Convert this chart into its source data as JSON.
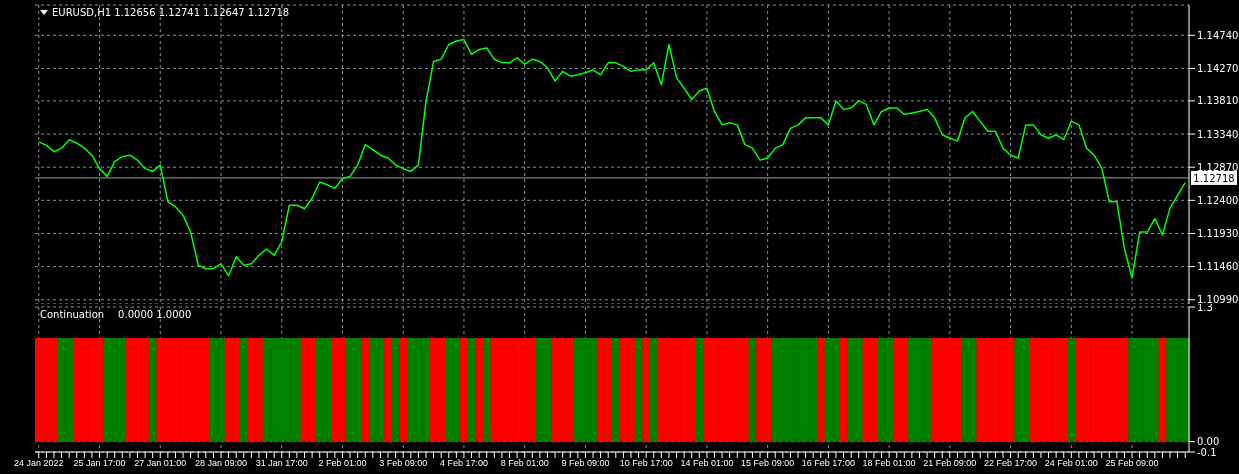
{
  "chart_data": [
    {
      "type": "line",
      "title": "EURUSD,H1 1.12656 1.12741 1.12647 1.12718",
      "series": [
        {
          "color": "#00ff00",
          "values": [
            1.1323,
            1.1318,
            1.1309,
            1.1314,
            1.1326,
            1.1321,
            1.1314,
            1.1304,
            1.1285,
            1.1274,
            1.1295,
            1.1302,
            1.1304,
            1.1297,
            1.1285,
            1.1281,
            1.129,
            1.1238,
            1.1231,
            1.1219,
            1.1195,
            1.1148,
            1.1143,
            1.1143,
            1.115,
            1.1133,
            1.116,
            1.1148,
            1.115,
            1.1162,
            1.1171,
            1.1162,
            1.1181,
            1.1233,
            1.1233,
            1.1228,
            1.1243,
            1.1266,
            1.1262,
            1.1257,
            1.1271,
            1.1274,
            1.129,
            1.1319,
            1.1312,
            1.1304,
            1.13,
            1.129,
            1.1285,
            1.1281,
            1.129,
            1.138,
            1.1437,
            1.144,
            1.1461,
            1.1466,
            1.1468,
            1.1447,
            1.1454,
            1.1456,
            1.144,
            1.1435,
            1.1435,
            1.1442,
            1.1433,
            1.144,
            1.1437,
            1.1428,
            1.1409,
            1.1423,
            1.1416,
            1.1418,
            1.1421,
            1.1425,
            1.1418,
            1.1435,
            1.1435,
            1.143,
            1.1423,
            1.1425,
            1.1425,
            1.1435,
            1.1404,
            1.1461,
            1.1414,
            1.1399,
            1.1383,
            1.1395,
            1.1399,
            1.1366,
            1.1347,
            1.135,
            1.1347,
            1.1319,
            1.1314,
            1.1297,
            1.13,
            1.1314,
            1.1319,
            1.1342,
            1.1347,
            1.1357,
            1.1357,
            1.1357,
            1.1347,
            1.1381,
            1.1369,
            1.1371,
            1.1381,
            1.1376,
            1.1347,
            1.1366,
            1.1371,
            1.1371,
            1.1362,
            1.1364,
            1.1366,
            1.1369,
            1.1357,
            1.1333,
            1.1328,
            1.1324,
            1.1357,
            1.1366,
            1.1352,
            1.1338,
            1.1338,
            1.1314,
            1.1304,
            1.13,
            1.1347,
            1.1347,
            1.1333,
            1.1328,
            1.1333,
            1.1326,
            1.1352,
            1.1347,
            1.1314,
            1.1304,
            1.1286,
            1.1238,
            1.1238,
            1.1171,
            1.113,
            1.1195,
            1.1195,
            1.1214,
            1.1191,
            1.1229,
            1.1247,
            1.1265
          ]
        }
      ],
      "ylim": [
        1.1093,
        1.1517
      ],
      "yticks": [
        {
          "value": 1.1099,
          "label": "1.10990"
        },
        {
          "value": 1.1146,
          "label": "1.11460"
        },
        {
          "value": 1.1193,
          "label": "1.11930"
        },
        {
          "value": 1.124,
          "label": "1.12400"
        },
        {
          "value": 1.1287,
          "label": "1.12870"
        },
        {
          "value": 1.1334,
          "label": "1.13340"
        },
        {
          "value": 1.1381,
          "label": "1.13810"
        },
        {
          "value": 1.1427,
          "label": "1.14270"
        },
        {
          "value": 1.1474,
          "label": "1.14740"
        }
      ],
      "ref_lines": [
        {
          "axis": "y",
          "value": 1.12718,
          "label": "1.12718",
          "color": "#a0a0a0"
        }
      ],
      "grid": true,
      "tick_labels": "y",
      "marker": "none",
      "line_style": "solid"
    },
    {
      "type": "bar",
      "title": "Continuation",
      "annotations": [
        "0.0000 1.0000"
      ],
      "categories": [
        "24 Jan 2022",
        null,
        null,
        null,
        null,
        null,
        null,
        null,
        "25 Jan 17:00",
        null,
        null,
        null,
        null,
        null,
        null,
        null,
        "27 Jan 01:00",
        null,
        null,
        null,
        null,
        null,
        null,
        null,
        "28 Jan 09:00",
        null,
        null,
        null,
        null,
        null,
        null,
        null,
        "31 Jan 17:00",
        null,
        null,
        null,
        null,
        null,
        null,
        null,
        "2 Feb 01:00",
        null,
        null,
        null,
        null,
        null,
        null,
        null,
        "3 Feb 09:00",
        null,
        null,
        null,
        null,
        null,
        null,
        null,
        "4 Feb 17:00",
        null,
        null,
        null,
        null,
        null,
        null,
        null,
        "8 Feb 01:00",
        null,
        null,
        null,
        null,
        null,
        null,
        null,
        "9 Feb 09:00",
        null,
        null,
        null,
        null,
        null,
        null,
        null,
        "10 Feb 17:00",
        null,
        null,
        null,
        null,
        null,
        null,
        null,
        "14 Feb 01:00",
        null,
        null,
        null,
        null,
        null,
        null,
        null,
        "15 Feb 09:00",
        null,
        null,
        null,
        null,
        null,
        null,
        null,
        "16 Feb 17:00",
        null,
        null,
        null,
        null,
        null,
        null,
        null,
        "18 Feb 01:00",
        null,
        null,
        null,
        null,
        null,
        null,
        null,
        "21 Feb 09:00",
        null,
        null,
        null,
        null,
        null,
        null,
        null,
        "22 Feb 17:00",
        null,
        null,
        null,
        null,
        null,
        null,
        null,
        "24 Feb 01:00",
        null,
        null,
        null,
        null,
        null,
        null,
        null,
        "25 Feb 09:00",
        null,
        null,
        null,
        null,
        null,
        null,
        null
      ],
      "values": [
        1,
        1,
        1,
        1,
        1,
        1,
        1,
        1,
        1,
        1,
        1,
        1,
        1,
        1,
        1,
        1,
        1,
        1,
        1,
        1,
        1,
        1,
        1,
        1,
        1,
        1,
        1,
        1,
        1,
        1,
        1,
        1,
        1,
        1,
        1,
        1,
        1,
        1,
        1,
        1,
        1,
        1,
        1,
        1,
        1,
        1,
        1,
        1,
        1,
        1,
        1,
        1,
        1,
        1,
        1,
        1,
        1,
        1,
        1,
        1,
        1,
        1,
        1,
        1,
        1,
        1,
        1,
        1,
        1,
        1,
        1,
        1,
        1,
        1,
        1,
        1,
        1,
        1,
        1,
        1,
        1,
        1,
        1,
        1,
        1,
        1,
        1,
        1,
        1,
        1,
        1,
        1,
        1,
        1,
        1,
        1,
        1,
        1,
        1,
        1,
        1,
        1,
        1,
        1,
        1,
        1,
        1,
        1,
        1,
        1,
        1,
        1,
        1,
        1,
        1,
        1,
        1,
        1,
        1,
        1,
        1,
        1,
        1,
        1,
        1,
        1,
        1,
        1,
        1,
        1,
        1,
        1,
        1,
        1,
        1,
        1,
        1,
        1,
        1,
        1,
        1,
        1,
        1,
        1,
        1,
        1,
        1,
        1,
        1,
        1,
        1,
        1
      ],
      "colors": [
        "#ff0000",
        "#ff0000",
        "#ff0000",
        "#008000",
        "#008000",
        "#ff0000",
        "#ff0000",
        "#ff0000",
        "#ff0000",
        "#008000",
        "#008000",
        "#008000",
        "#ff0000",
        "#ff0000",
        "#ff0000",
        "#008000",
        "#ff0000",
        "#ff0000",
        "#ff0000",
        "#ff0000",
        "#ff0000",
        "#ff0000",
        "#ff0000",
        "#008000",
        "#008000",
        "#ff0000",
        "#ff0000",
        "#008000",
        "#ff0000",
        "#ff0000",
        "#008000",
        "#008000",
        "#008000",
        "#008000",
        "#008000",
        "#ff0000",
        "#ff0000",
        "#008000",
        "#008000",
        "#ff0000",
        "#ff0000",
        "#008000",
        "#008000",
        "#ff0000",
        "#008000",
        "#008000",
        "#ff0000",
        "#008000",
        "#ff0000",
        "#008000",
        "#008000",
        "#008000",
        "#ff0000",
        "#ff0000",
        "#008000",
        "#008000",
        "#ff0000",
        "#008000",
        "#ff0000",
        "#008000",
        "#ff0000",
        "#ff0000",
        "#ff0000",
        "#ff0000",
        "#ff0000",
        "#ff0000",
        "#008000",
        "#008000",
        "#ff0000",
        "#ff0000",
        "#ff0000",
        "#008000",
        "#008000",
        "#008000",
        "#ff0000",
        "#ff0000",
        "#008000",
        "#ff0000",
        "#ff0000",
        "#008000",
        "#ff0000",
        "#008000",
        "#ff0000",
        "#ff0000",
        "#ff0000",
        "#ff0000",
        "#ff0000",
        "#008000",
        "#ff0000",
        "#ff0000",
        "#ff0000",
        "#ff0000",
        "#ff0000",
        "#ff0000",
        "#008000",
        "#ff0000",
        "#ff0000",
        "#008000",
        "#008000",
        "#008000",
        "#008000",
        "#008000",
        "#008000",
        "#ff0000",
        "#008000",
        "#008000",
        "#ff0000",
        "#008000",
        "#008000",
        "#ff0000",
        "#ff0000",
        "#008000",
        "#008000",
        "#ff0000",
        "#ff0000",
        "#008000",
        "#008000",
        "#008000",
        "#ff0000",
        "#ff0000",
        "#ff0000",
        "#ff0000",
        "#008000",
        "#008000",
        "#ff0000",
        "#ff0000",
        "#ff0000",
        "#ff0000",
        "#ff0000",
        "#008000",
        "#008000",
        "#ff0000",
        "#ff0000",
        "#ff0000",
        "#ff0000",
        "#ff0000",
        "#008000",
        "#ff0000",
        "#ff0000",
        "#ff0000",
        "#ff0000",
        "#ff0000",
        "#ff0000",
        "#ff0000",
        "#008000",
        "#008000",
        "#008000",
        "#008000",
        "#ff0000",
        "#008000",
        "#008000",
        "#008000"
      ],
      "ylim": [
        -0.1,
        1.3
      ],
      "yticks": [
        -0.1,
        {
          "value": 0,
          "label": "0.00"
        },
        1.3
      ],
      "grid": true
    }
  ]
}
